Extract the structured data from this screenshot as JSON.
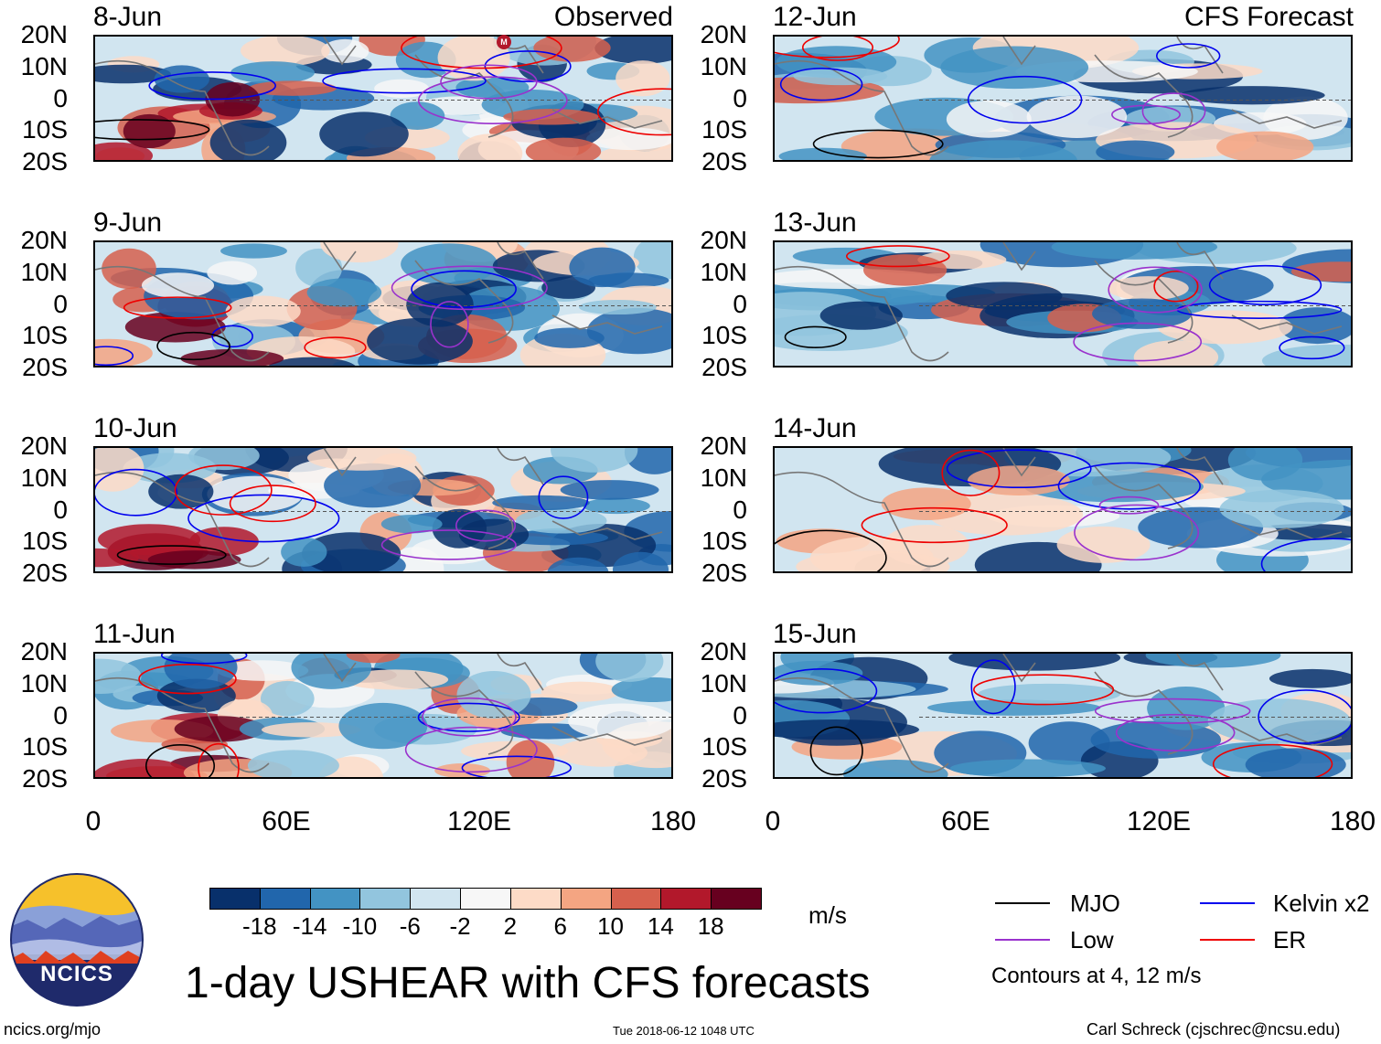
{
  "figure": {
    "title": "1-day USHEAR with CFS forecasts",
    "units": "m/s",
    "footer_left": "ncics.org/mjo",
    "footer_center": "Tue 2018-06-12 1048 UTC",
    "footer_right": "Carl Schreck (cjschrec@ncsu.edu)",
    "logo_text": "NCICS",
    "contour_note": "Contours at 4, 12 m/s",
    "left_column_title": "Observed",
    "right_column_title": "CFS Forecast",
    "mjo_marker": "M"
  },
  "chart_data": {
    "type": "heatmap",
    "variable": "USHEAR anomaly (m/s)",
    "xlim": [
      0,
      180
    ],
    "ylim": [
      -20,
      20
    ],
    "x_ticks": [
      "0",
      "60E",
      "120E",
      "180"
    ],
    "y_ticks": [
      "20N",
      "10N",
      "0",
      "10S",
      "20S"
    ],
    "colorbar_levels": [
      "-18",
      "-14",
      "-10",
      "-6",
      "-2",
      "2",
      "6",
      "10",
      "14",
      "18"
    ],
    "colorbar_colors": [
      "#08306b",
      "#2166ac",
      "#4393c3",
      "#92c5de",
      "#d1e5f0",
      "#f7f7f7",
      "#fddbc7",
      "#f4a582",
      "#d6604d",
      "#b2182b",
      "#67001f"
    ],
    "legend": [
      {
        "label": "MJO",
        "color": "#000000"
      },
      {
        "label": "Kelvin x2",
        "color": "#0000ee"
      },
      {
        "label": "Low",
        "color": "#9a32cd"
      },
      {
        "label": "ER",
        "color": "#ee0000"
      }
    ],
    "panels": [
      {
        "date": "8-Jun",
        "source": "Observed"
      },
      {
        "date": "9-Jun",
        "source": "Observed"
      },
      {
        "date": "10-Jun",
        "source": "Observed"
      },
      {
        "date": "11-Jun",
        "source": "Observed"
      },
      {
        "date": "12-Jun",
        "source": "CFS Forecast"
      },
      {
        "date": "13-Jun",
        "source": "CFS Forecast"
      },
      {
        "date": "14-Jun",
        "source": "CFS Forecast"
      },
      {
        "date": "15-Jun",
        "source": "CFS Forecast"
      }
    ]
  }
}
